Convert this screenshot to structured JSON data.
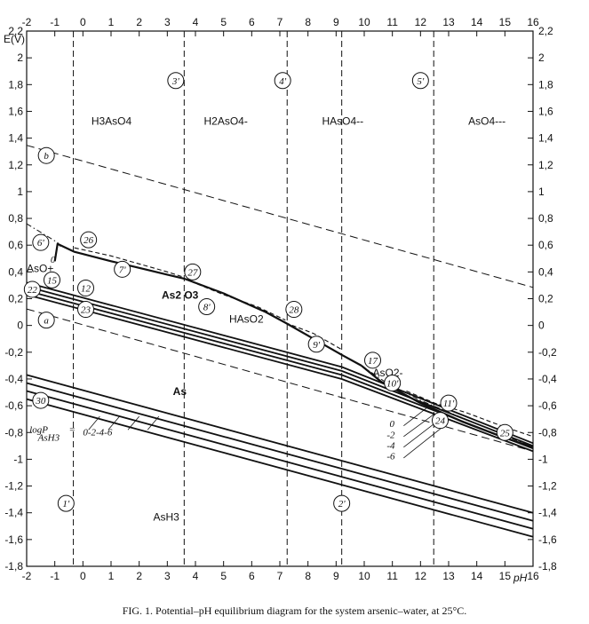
{
  "chart_data": {
    "type": "line",
    "xlabel": "pH",
    "ylabel": "E(V)",
    "xlim": [
      -2,
      16
    ],
    "ylim": [
      -1.8,
      2.2
    ],
    "x_ticks": [
      "-2",
      "-1",
      "0",
      "1",
      "2",
      "3",
      "4",
      "5",
      "6",
      "7",
      "8",
      "9",
      "10",
      "11",
      "12",
      "13",
      "14",
      "15",
      "16"
    ],
    "y_ticks_left": [
      "-1,8",
      "-1,6",
      "-1,4",
      "-1,2",
      "-1",
      "-0,8",
      "-0,6",
      "-0,4",
      "-0,2",
      "0",
      "0,2",
      "0,4",
      "0,6",
      "0,8",
      "1",
      "1,2",
      "1,4",
      "1,6",
      "1,8",
      "2",
      "2,2"
    ],
    "y_ticks_right": [
      "-1,8",
      "-1,6",
      "-1,4",
      "-1,2",
      "-1",
      "-0,8",
      "-0,6",
      "-0,4",
      "-0,2",
      "0",
      "0,2",
      "0,4",
      "0,6",
      "0,8",
      "1",
      "1,2",
      "1,4",
      "1,6",
      "1,8",
      "2",
      "2,2"
    ],
    "species": [
      {
        "text": "H3AsO4",
        "x": 0.3,
        "y": 1.5
      },
      {
        "text": "H2AsO4-",
        "x": 4.3,
        "y": 1.5
      },
      {
        "text": "HAsO4--",
        "x": 8.5,
        "y": 1.5
      },
      {
        "text": "AsO4---",
        "x": 13.7,
        "y": 1.5
      },
      {
        "text": "As2 O3",
        "x": 2.8,
        "y": 0.2
      },
      {
        "text": "HAsO2",
        "x": 5.2,
        "y": 0.02
      },
      {
        "text": "AsO2-",
        "x": 10.3,
        "y": -0.38
      },
      {
        "text": "AsO+",
        "x": -2.0,
        "y": 0.4
      },
      {
        "text": "As",
        "x": 3.2,
        "y": -0.52
      },
      {
        "text": "AsH3",
        "x": 2.5,
        "y": -1.46
      }
    ],
    "water_lines": [
      {
        "name": "a",
        "x": [
          -2,
          16
        ],
        "y": [
          0.123,
          -0.94
        ]
      },
      {
        "name": "b",
        "x": [
          -2,
          16
        ],
        "y": [
          1.346,
          0.284
        ]
      }
    ],
    "vertical_boundaries": [
      {
        "name": "1'",
        "x": -0.34
      },
      {
        "name": "2'",
        "x": 9.2
      },
      {
        "name": "3'",
        "x": 3.6
      },
      {
        "name": "4'",
        "x": 7.26
      },
      {
        "name": "5'",
        "x": 12.47
      }
    ],
    "dashdot_boundaries": [
      {
        "name": "6'",
        "x": [
          -2.0,
          -0.9,
          -0.8
        ],
        "y": [
          0.76,
          0.62,
          0.59
        ]
      },
      {
        "name": "10'",
        "x": [
          9.9,
          10.8,
          12.0,
          16.0
        ],
        "y": [
          -0.3,
          -0.43,
          -0.56,
          -0.91
        ]
      }
    ],
    "solid_boundaries": [
      {
        "name": "26",
        "x": [
          -1.0,
          -0.9,
          -0.3,
          1.0,
          2.0,
          3.0,
          3.6
        ],
        "y": [
          0.48,
          0.61,
          0.55,
          0.48,
          0.43,
          0.38,
          0.35
        ]
      },
      {
        "name": "27",
        "x": [
          3.6,
          5.0,
          6.5,
          7.2,
          8.2,
          9.2,
          9.9
        ],
        "y": [
          0.35,
          0.24,
          0.1,
          0.02,
          -0.1,
          -0.22,
          -0.3
        ]
      },
      {
        "name": "17",
        "x": [
          9.9,
          10.6,
          12.0,
          13.5,
          15.0,
          16.0
        ],
        "y": [
          -0.3,
          -0.42,
          -0.58,
          -0.72,
          -0.84,
          -0.91
        ]
      }
    ],
    "dashed_boundaries": [
      {
        "name": "7'",
        "x": [
          -0.3,
          1.0,
          2.0,
          3.0,
          3.6
        ],
        "y": [
          0.58,
          0.52,
          0.46,
          0.4,
          0.36
        ]
      },
      {
        "name": "8'",
        "x": [
          3.6,
          5.0,
          6.2,
          7.2
        ],
        "y": [
          0.35,
          0.23,
          0.14,
          0.04
        ]
      },
      {
        "name": "9'",
        "x": [
          7.2,
          8.2,
          9.2
        ],
        "y": [
          0.02,
          -0.06,
          -0.18
        ]
      },
      {
        "name": "11'",
        "x": [
          11.5,
          12.5,
          13.6,
          15.0,
          16.0
        ],
        "y": [
          -0.49,
          -0.58,
          -0.65,
          -0.76,
          -0.83
        ]
      }
    ],
    "as_redox_family": [
      {
        "name": "0",
        "y_at_-2": 0.32,
        "y_at_9.2": -0.31,
        "y_at_16": -0.88
      },
      {
        "name": "-2",
        "y_at_-2": 0.29,
        "y_at_9.2": -0.34,
        "y_at_16": -0.9
      },
      {
        "name": "-4",
        "y_at_-2": 0.26,
        "y_at_9.2": -0.37,
        "y_at_16": -0.92
      },
      {
        "name": "-6",
        "y_at_-2": 0.23,
        "y_at_9.2": -0.4,
        "y_at_16": -0.94
      }
    ],
    "arsine_family": [
      {
        "name": "0",
        "y_at_-2": -0.37,
        "y_at_16": -1.4
      },
      {
        "name": "-2",
        "y_at_-2": -0.43,
        "y_at_16": -1.46
      },
      {
        "name": "-4",
        "y_at_-2": -0.49,
        "y_at_16": -1.52
      },
      {
        "name": "-6",
        "y_at_-2": -0.55,
        "y_at_16": -1.58
      }
    ],
    "circled_labels": [
      {
        "text": "b",
        "x": -1.3,
        "y": 1.27
      },
      {
        "text": "a",
        "x": -1.3,
        "y": 0.04
      },
      {
        "text": "3'",
        "x": 3.3,
        "y": 1.83
      },
      {
        "text": "4'",
        "x": 7.1,
        "y": 1.83
      },
      {
        "text": "5'",
        "x": 12.0,
        "y": 1.83
      },
      {
        "text": "6'",
        "x": -1.5,
        "y": 0.62
      },
      {
        "text": "26",
        "x": 0.2,
        "y": 0.64
      },
      {
        "text": "7'",
        "x": 1.4,
        "y": 0.42
      },
      {
        "text": "27",
        "x": 3.9,
        "y": 0.4
      },
      {
        "text": "15",
        "x": -1.1,
        "y": 0.34
      },
      {
        "text": "22",
        "x": -1.8,
        "y": 0.27
      },
      {
        "text": "12",
        "x": 0.1,
        "y": 0.28
      },
      {
        "text": "23",
        "x": 0.1,
        "y": 0.12
      },
      {
        "text": "8'",
        "x": 4.4,
        "y": 0.14
      },
      {
        "text": "28",
        "x": 7.5,
        "y": 0.12
      },
      {
        "text": "9'",
        "x": 8.3,
        "y": -0.14
      },
      {
        "text": "17",
        "x": 10.3,
        "y": -0.26
      },
      {
        "text": "10'",
        "x": 11.0,
        "y": -0.43
      },
      {
        "text": "11'",
        "x": 13.0,
        "y": -0.58
      },
      {
        "text": "24",
        "x": 12.7,
        "y": -0.71
      },
      {
        "text": "25",
        "x": 15.0,
        "y": -0.8
      },
      {
        "text": "30",
        "x": -1.5,
        "y": -0.56
      },
      {
        "text": "1'",
        "x": -0.6,
        "y": -1.33
      },
      {
        "text": "2'",
        "x": 9.2,
        "y": -1.33
      }
    ],
    "small_labels": [
      {
        "text": "0",
        "x": -1.15,
        "y": 0.47
      },
      {
        "text": "logP",
        "x": -1.9,
        "y": -0.8
      },
      {
        "text": "AsH3",
        "x": -1.6,
        "y": -0.86
      },
      {
        "text": "=",
        "x": -0.5,
        "y": -0.8
      },
      {
        "text": "0-2-4-6",
        "x": 0.0,
        "y": -0.82
      },
      {
        "text": "0",
        "x": 10.9,
        "y": -0.76
      },
      {
        "text": "-2",
        "x": 10.8,
        "y": -0.84
      },
      {
        "text": "-4",
        "x": 10.8,
        "y": -0.92
      },
      {
        "text": "-6",
        "x": 10.8,
        "y": -1.0
      }
    ]
  },
  "caption": "FIG. 1. Potential–pH equilibrium diagram for the system arsenic–water, at 25°C."
}
